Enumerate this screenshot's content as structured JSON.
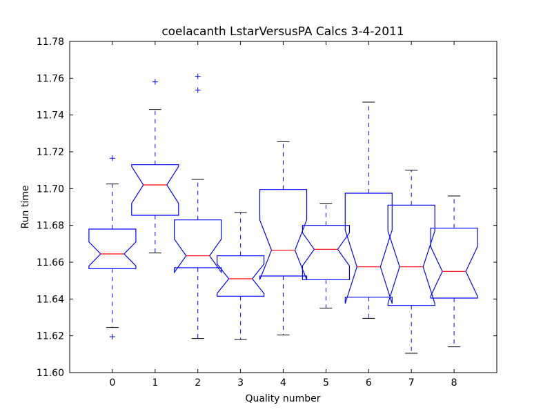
{
  "chart_data": {
    "type": "box",
    "title": "coelacanth LstarVersusPA Calcs 3-4-2011",
    "xlabel": "Quality number",
    "ylabel": "Run time",
    "ylim": [
      11.6,
      11.78
    ],
    "y_ticks": [
      "11.60",
      "11.62",
      "11.64",
      "11.66",
      "11.68",
      "11.70",
      "11.72",
      "11.74",
      "11.76",
      "11.78"
    ],
    "categories": [
      "0",
      "1",
      "2",
      "3",
      "4",
      "5",
      "6",
      "7",
      "8"
    ],
    "notched": true,
    "grid": false,
    "boxes": [
      {
        "category": "0",
        "whisker_low": 11.6245,
        "q1": 11.6565,
        "median": 11.6645,
        "q3": 11.678,
        "whisker_high": 11.7025,
        "notch_low": 11.658,
        "notch_high": 11.671,
        "outliers": [
          11.7165,
          11.6195
        ]
      },
      {
        "category": "1",
        "whisker_low": 11.665,
        "q1": 11.6855,
        "median": 11.702,
        "q3": 11.713,
        "whisker_high": 11.743,
        "notch_low": 11.692,
        "notch_high": 11.712,
        "outliers": [
          11.758
        ]
      },
      {
        "category": "2",
        "whisker_low": 11.6185,
        "q1": 11.657,
        "median": 11.6635,
        "q3": 11.683,
        "whisker_high": 11.705,
        "notch_low": 11.6545,
        "notch_high": 11.6725,
        "outliers": [
          11.761,
          11.7535
        ]
      },
      {
        "category": "3",
        "whisker_low": 11.618,
        "q1": 11.6415,
        "median": 11.651,
        "q3": 11.6635,
        "whisker_high": 11.687,
        "notch_low": 11.643,
        "notch_high": 11.659,
        "outliers": []
      },
      {
        "category": "4",
        "whisker_low": 11.6205,
        "q1": 11.6525,
        "median": 11.6665,
        "q3": 11.6995,
        "whisker_high": 11.7255,
        "notch_low": 11.6505,
        "notch_high": 11.683,
        "outliers": []
      },
      {
        "category": "5",
        "whisker_low": 11.635,
        "q1": 11.6505,
        "median": 11.667,
        "q3": 11.68,
        "whisker_high": 11.692,
        "notch_low": 11.658,
        "notch_high": 11.676,
        "outliers": []
      },
      {
        "category": "6",
        "whisker_low": 11.6295,
        "q1": 11.641,
        "median": 11.6575,
        "q3": 11.6975,
        "whisker_high": 11.747,
        "notch_low": 11.6375,
        "notch_high": 11.6775,
        "outliers": []
      },
      {
        "category": "7",
        "whisker_low": 11.6105,
        "q1": 11.6365,
        "median": 11.6575,
        "q3": 11.691,
        "whisker_high": 11.71,
        "notch_low": 11.6375,
        "notch_high": 11.677,
        "outliers": []
      },
      {
        "category": "8",
        "whisker_low": 11.614,
        "q1": 11.6405,
        "median": 11.655,
        "q3": 11.6785,
        "whisker_high": 11.696,
        "notch_low": 11.6415,
        "notch_high": 11.6685,
        "outliers": []
      }
    ],
    "colors": {
      "box": "#0000ff",
      "median": "#ff0000",
      "whisker": "#0000ff",
      "cap": "#000000",
      "outlier": "#0000ff",
      "axes": "#000000"
    }
  }
}
